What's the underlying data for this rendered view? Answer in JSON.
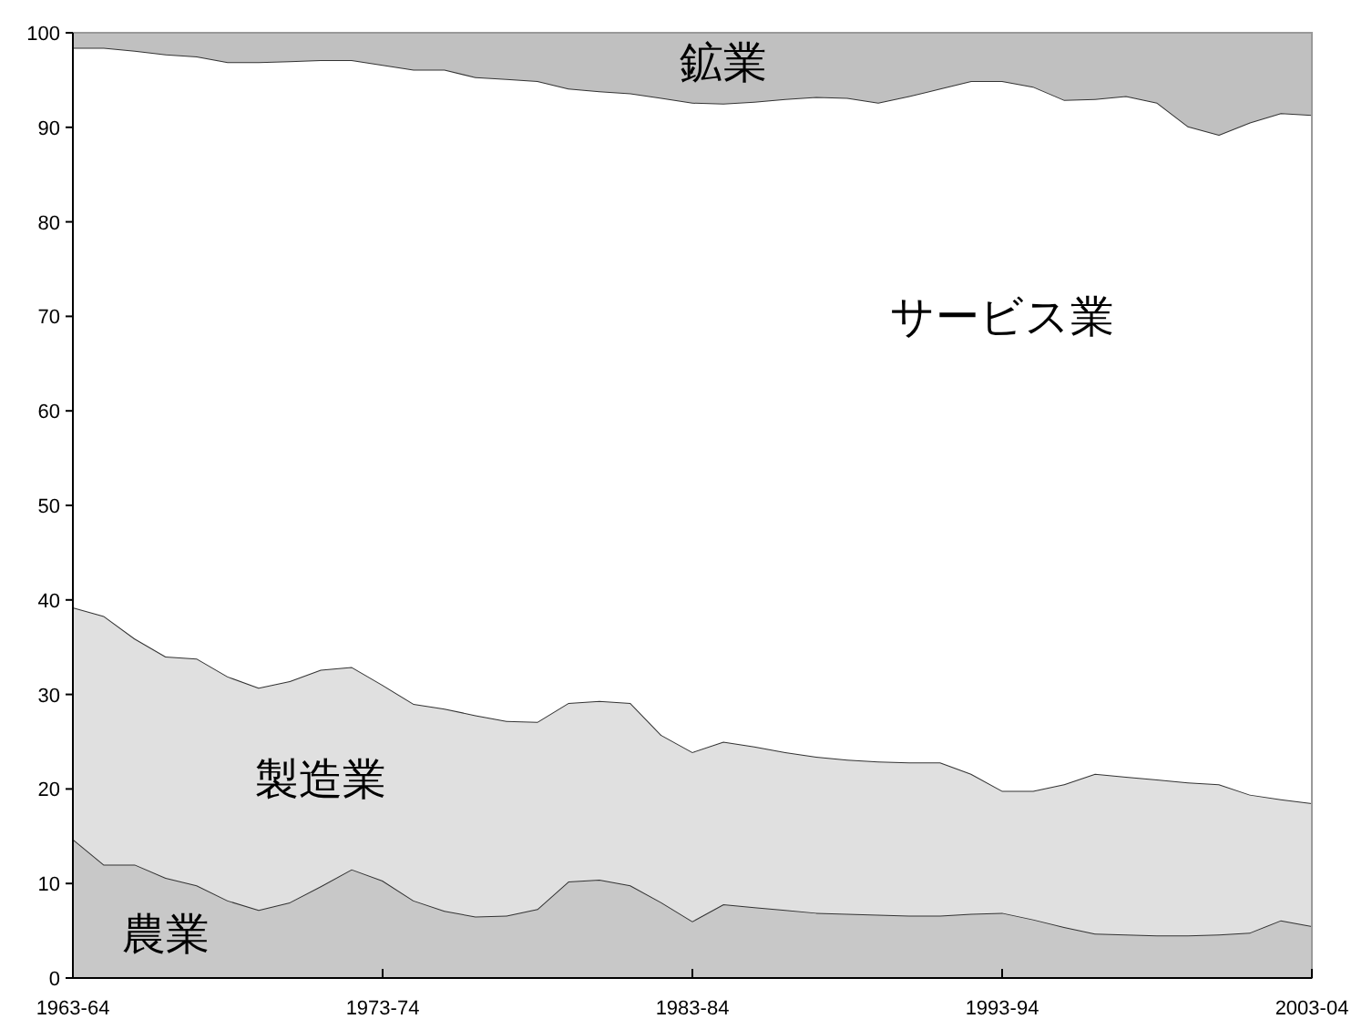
{
  "chart_data": {
    "type": "area",
    "stacked": true,
    "categories": [
      "1963-64",
      null,
      null,
      null,
      null,
      null,
      null,
      null,
      null,
      null,
      "1973-74",
      null,
      null,
      null,
      null,
      null,
      null,
      null,
      null,
      null,
      "1983-84",
      null,
      null,
      null,
      null,
      null,
      null,
      null,
      null,
      null,
      "1993-94",
      null,
      null,
      null,
      null,
      null,
      null,
      null,
      null,
      null,
      "2003-04"
    ],
    "ylim": [
      0,
      100
    ],
    "yticks": [
      0,
      10,
      20,
      30,
      40,
      50,
      60,
      70,
      80,
      90,
      100
    ],
    "series": [
      {
        "name": "農業",
        "color": "#c8c8c8",
        "values": [
          14.7,
          12.0,
          12.0,
          10.6,
          9.8,
          8.2,
          7.2,
          8.0,
          9.7,
          11.5,
          10.3,
          8.2,
          7.1,
          6.5,
          6.6,
          7.3,
          10.2,
          10.4,
          9.8,
          8.0,
          6.0,
          7.8,
          7.5,
          7.2,
          6.9,
          6.8,
          6.7,
          6.6,
          6.6,
          6.8,
          6.9,
          6.2,
          5.4,
          4.7,
          4.6,
          4.5,
          4.5,
          4.6,
          4.8,
          6.1,
          5.5
        ]
      },
      {
        "name": "製造業",
        "color": "#e0e0e0",
        "values": [
          24.5,
          26.3,
          23.9,
          23.4,
          24.0,
          23.7,
          23.5,
          23.4,
          22.9,
          21.4,
          20.7,
          20.8,
          21.4,
          21.3,
          20.6,
          19.8,
          18.9,
          18.9,
          19.3,
          17.7,
          17.9,
          17.2,
          17.0,
          16.7,
          16.5,
          16.3,
          16.2,
          16.2,
          16.2,
          14.8,
          12.9,
          13.6,
          15.1,
          16.9,
          16.7,
          16.5,
          16.2,
          15.9,
          14.6,
          12.8,
          13.0
        ]
      },
      {
        "name": "サービス業",
        "color": "#ffffff",
        "values": [
          59.2,
          60.1,
          62.2,
          63.7,
          63.7,
          65.0,
          66.2,
          65.6,
          64.5,
          64.2,
          65.6,
          67.1,
          67.6,
          67.5,
          67.9,
          67.8,
          65.0,
          64.5,
          64.5,
          67.4,
          68.7,
          67.5,
          68.2,
          69.1,
          69.8,
          70.0,
          69.7,
          70.5,
          71.3,
          73.3,
          75.1,
          74.5,
          72.4,
          71.4,
          72.0,
          71.6,
          69.4,
          68.7,
          71.1,
          72.6,
          72.8
        ]
      },
      {
        "name": "鉱業",
        "color": "#c0c0c0",
        "values": [
          1.6,
          1.6,
          1.9,
          2.3,
          2.5,
          3.1,
          3.1,
          3.0,
          2.9,
          2.9,
          3.4,
          3.9,
          3.9,
          4.7,
          4.9,
          5.1,
          5.9,
          6.2,
          6.4,
          6.9,
          7.4,
          7.5,
          7.3,
          7.0,
          6.8,
          6.9,
          7.4,
          6.7,
          5.9,
          5.1,
          5.1,
          5.7,
          7.1,
          7.0,
          6.7,
          7.4,
          9.9,
          10.8,
          9.5,
          8.5,
          8.7
        ]
      }
    ]
  }
}
